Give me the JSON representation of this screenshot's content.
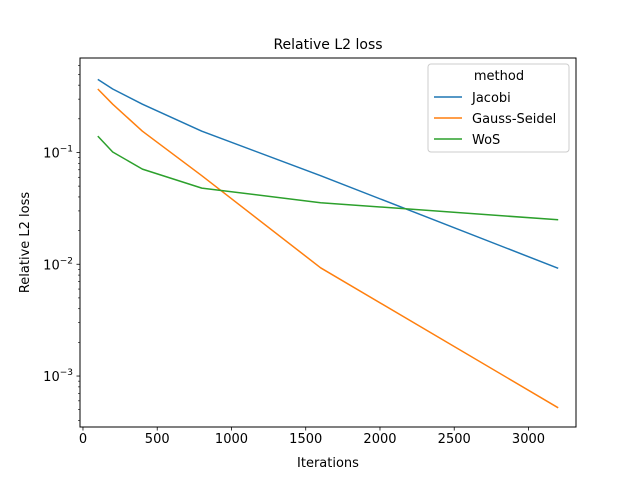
{
  "chart_data": {
    "type": "line",
    "title": "Relative L2 loss",
    "xlabel": "Iterations",
    "ylabel": "Relative L2 loss",
    "xlim": [
      -20,
      3320
    ],
    "ylim": [
      0.00035,
      0.7
    ],
    "yscale": "log",
    "xticks": [
      0,
      500,
      1000,
      1500,
      2000,
      2500,
      3000
    ],
    "xtick_labels": [
      "0",
      "500",
      "1000",
      "1500",
      "2000",
      "2500",
      "3000"
    ],
    "yticks": [
      0.001,
      0.01,
      0.1
    ],
    "ytick_labels": [
      {
        "base": "10",
        "exp": "−3"
      },
      {
        "base": "10",
        "exp": "−2"
      },
      {
        "base": "10",
        "exp": "−1"
      }
    ],
    "grid": false,
    "legend": {
      "title": "method",
      "position": "top-right"
    },
    "series": [
      {
        "name": "Jacobi",
        "color": "#1f77b4",
        "x": [
          100,
          200,
          400,
          800,
          1600,
          3200
        ],
        "y": [
          0.45,
          0.37,
          0.27,
          0.155,
          0.062,
          0.0092
        ]
      },
      {
        "name": "Gauss-Seidel",
        "color": "#ff7f0e",
        "x": [
          100,
          200,
          400,
          800,
          1600,
          3200
        ],
        "y": [
          0.37,
          0.27,
          0.155,
          0.062,
          0.0093,
          0.00052
        ]
      },
      {
        "name": "WoS",
        "color": "#2ca02c",
        "x": [
          100,
          200,
          400,
          800,
          1600,
          3200
        ],
        "y": [
          0.14,
          0.101,
          0.071,
          0.048,
          0.0355,
          0.025
        ]
      }
    ]
  }
}
